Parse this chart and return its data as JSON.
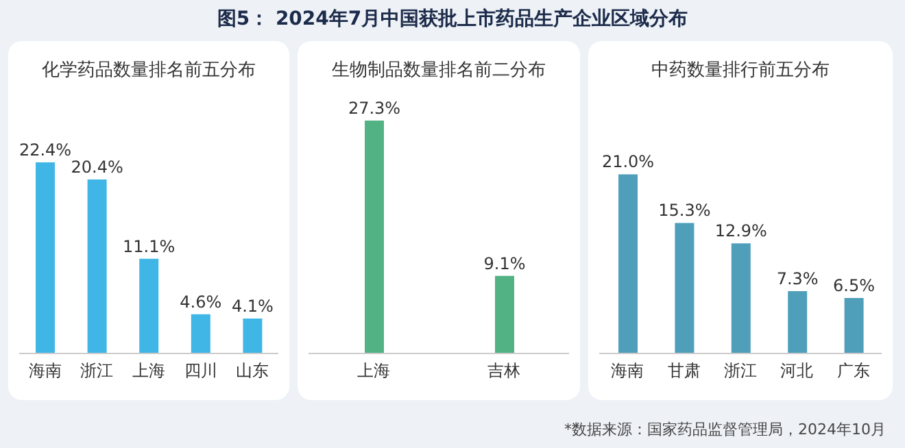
{
  "chart_data": [
    {
      "type": "bar",
      "title": "化学药品数量排名前五分布",
      "annotations": [
        "图5：  2024年7月中国获批上市药品生产企业区域分布"
      ],
      "categories": [
        "海南",
        "浙江",
        "上海",
        "四川",
        "山东"
      ],
      "values": [
        22.4,
        20.4,
        11.1,
        4.6,
        4.1
      ],
      "value_labels": [
        "22.4%",
        "20.4%",
        "11.1%",
        "4.6%",
        "4.1%"
      ],
      "color": "#3fb6e6"
    },
    {
      "type": "bar",
      "title": "生物制品数量排名前二分布",
      "categories": [
        "上海",
        "吉林"
      ],
      "values": [
        27.3,
        9.1
      ],
      "value_labels": [
        "27.3%",
        "9.1%"
      ],
      "color": "#52b283"
    },
    {
      "type": "bar",
      "title": "中药数量排行前五分布",
      "annotations": [
        "*数据来源：国家药品监督管理局，2024年10月"
      ],
      "categories": [
        "海南",
        "甘肃",
        "浙江",
        "河北",
        "广东"
      ],
      "values": [
        21.0,
        15.3,
        12.9,
        7.3,
        6.5
      ],
      "value_labels": [
        "21.0%",
        "15.3%",
        "12.9%",
        "7.3%",
        "6.5%"
      ],
      "color": "#4f9fbb"
    }
  ]
}
